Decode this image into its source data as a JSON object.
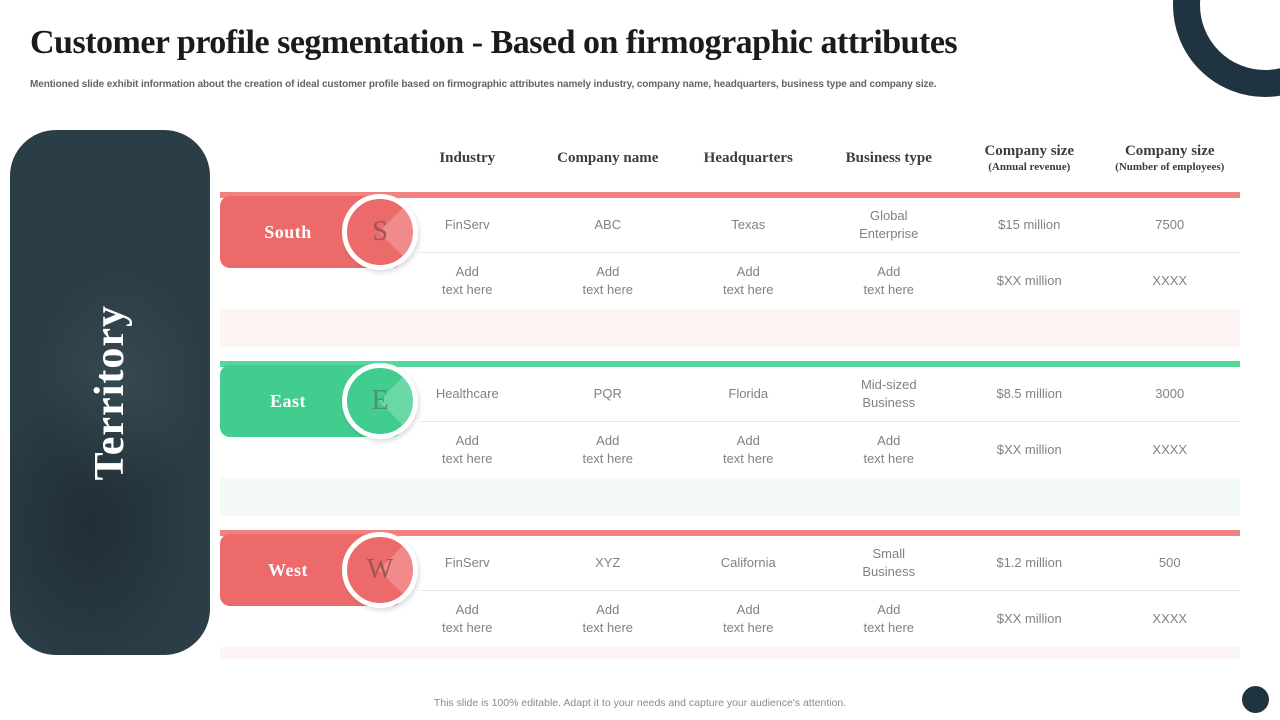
{
  "title": "Customer profile segmentation - Based on firmographic attributes",
  "subtitle": "Mentioned slide exhibit information about the creation of ideal customer profile based on firmographic attributes namely industry, company name, headquarters, business type and company size.",
  "footer": "This slide is 100% editable. Adapt it to your needs and capture your audience's attention.",
  "sidebar": {
    "label": "Territory"
  },
  "table": {
    "headers": [
      {
        "label": "Industry",
        "sub": ""
      },
      {
        "label": "Company name",
        "sub": ""
      },
      {
        "label": "Headquarters",
        "sub": ""
      },
      {
        "label": "Business type",
        "sub": ""
      },
      {
        "label": "Company size",
        "sub": "(Annual revenue)"
      },
      {
        "label": "Company size",
        "sub": "(Number of employees)"
      }
    ],
    "groups": [
      {
        "name": "South",
        "initial": "S",
        "accent": "#ed6a6a",
        "rows": [
          {
            "cells": [
              "FinServ",
              "ABC",
              "Texas",
              "Global\nEnterprise",
              "$15 million",
              "7500"
            ]
          },
          {
            "cells": [
              "Add\ntext here",
              "Add\ntext here",
              "Add\ntext here",
              "Add\ntext here",
              "$XX million",
              "XXXX"
            ]
          }
        ]
      },
      {
        "name": "East",
        "initial": "E",
        "accent": "#40cd8d",
        "rows": [
          {
            "cells": [
              "Healthcare",
              "PQR",
              "Florida",
              "Mid-sized\nBusiness",
              "$8.5 million",
              "3000"
            ]
          },
          {
            "cells": [
              "Add\ntext here",
              "Add\ntext here",
              "Add\ntext here",
              "Add\ntext here",
              "$XX million",
              "XXXX"
            ]
          }
        ]
      },
      {
        "name": "West",
        "initial": "W",
        "accent": "#ed6a6a",
        "rows": [
          {
            "cells": [
              "FinServ",
              "XYZ",
              "California",
              "Small\nBusiness",
              "$1.2 million",
              "500"
            ]
          },
          {
            "cells": [
              "Add\ntext here",
              "Add\ntext here",
              "Add\ntext here",
              "Add\ntext here",
              "$XX million",
              "XXXX"
            ]
          }
        ]
      }
    ]
  },
  "colors": {
    "coral": "#ed6a6a",
    "green": "#40cd8d",
    "dark_teal": "#203340",
    "header_text": "#3d3d3d",
    "data_text": "#828282"
  }
}
